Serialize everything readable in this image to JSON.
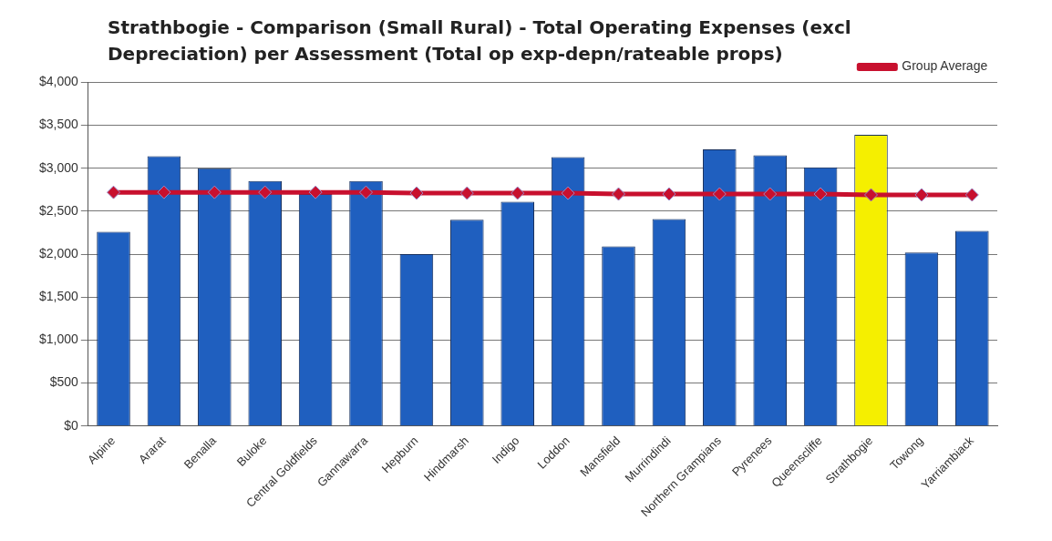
{
  "chart_data": {
    "type": "bar",
    "title": "Strathbogie - Comparison (Small Rural) - Total Operating Expenses (excl Depreciation) per Assessment (Total op exp-depn/rateable props)",
    "categories": [
      "Alpine",
      "Ararat",
      "Benalla",
      "Buloke",
      "Central Goldfields",
      "Gannawarra",
      "Hepburn",
      "Hindmarsh",
      "Indigo",
      "Loddon",
      "Mansfield",
      "Murrindindi",
      "Northern Grampians",
      "Pyrenees",
      "Queenscliffe",
      "Strathbogie",
      "Towong",
      "Yarriambiack"
    ],
    "series": [
      {
        "colors": [
          "#1f5fbf",
          "#1f5fbf",
          "#1f5fbf",
          "#1f5fbf",
          "#1f5fbf",
          "#1f5fbf",
          "#1f5fbf",
          "#1f5fbf",
          "#1f5fbf",
          "#1f5fbf",
          "#1f5fbf",
          "#1f5fbf",
          "#1f5fbf",
          "#1f5fbf",
          "#1f5fbf",
          "#f5ef00",
          "#1f5fbf",
          "#1f5fbf"
        ],
        "values": [
          2260,
          3140,
          3000,
          2850,
          2700,
          2850,
          2000,
          2400,
          2610,
          3130,
          2090,
          2410,
          3220,
          3150,
          3010,
          3390,
          2020,
          2270
        ]
      },
      {
        "type": "line",
        "name": "Group Average",
        "color": "#c8102e",
        "values": [
          2720,
          2720,
          2720,
          2720,
          2720,
          2720,
          2710,
          2710,
          2710,
          2710,
          2700,
          2700,
          2700,
          2700,
          2700,
          2690,
          2690,
          2690
        ]
      }
    ],
    "ylim": [
      0,
      4000
    ],
    "yticks": [
      {
        "value": 0,
        "label": "$0"
      },
      {
        "value": 500,
        "label": "$500"
      },
      {
        "value": 1000,
        "label": "$1,000"
      },
      {
        "value": 1500,
        "label": "$1,500"
      },
      {
        "value": 2000,
        "label": "$2,000"
      },
      {
        "value": 2500,
        "label": "$2,500"
      },
      {
        "value": 3000,
        "label": "$3,000"
      },
      {
        "value": 3500,
        "label": "$3,500"
      },
      {
        "value": 4000,
        "label": "$4,000"
      }
    ],
    "grid": "y",
    "legend": "top right",
    "marker": "diamond"
  }
}
